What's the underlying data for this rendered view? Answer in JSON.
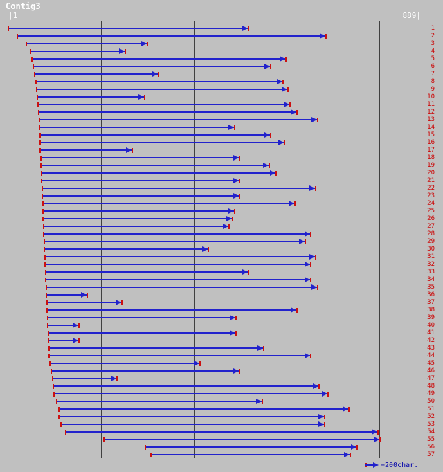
{
  "title": "Contig3",
  "ruler": {
    "left_label": "|1",
    "right_label": "889|"
  },
  "legend": {
    "label": "=200char."
  },
  "colors": {
    "background": "#c0c0c0",
    "read_blue": "#2222cc",
    "tick_red": "#cc1111",
    "label_red": "#cc0000",
    "grid_line": "#404040",
    "title_text": "#ffffff",
    "legend_text": "#0000aa"
  },
  "chart_data": {
    "type": "alignment",
    "title": "Contig3",
    "x_unit": "char",
    "x_range": [
      1,
      889
    ],
    "gridline_positions": [
      200,
      400,
      600,
      800
    ],
    "legend_label": "=200char.",
    "reads": [
      {
        "id": 1,
        "start": 1,
        "end": 517,
        "direction": "forward"
      },
      {
        "id": 2,
        "start": 20,
        "end": 683,
        "direction": "forward"
      },
      {
        "id": 3,
        "start": 40,
        "end": 299,
        "direction": "forward"
      },
      {
        "id": 4,
        "start": 49,
        "end": 251,
        "direction": "forward"
      },
      {
        "id": 5,
        "start": 52,
        "end": 597,
        "direction": "forward"
      },
      {
        "id": 6,
        "start": 55,
        "end": 564,
        "direction": "forward"
      },
      {
        "id": 7,
        "start": 58,
        "end": 323,
        "direction": "forward"
      },
      {
        "id": 8,
        "start": 61,
        "end": 591,
        "direction": "forward"
      },
      {
        "id": 9,
        "start": 62,
        "end": 601,
        "direction": "forward"
      },
      {
        "id": 10,
        "start": 64,
        "end": 293,
        "direction": "forward"
      },
      {
        "id": 11,
        "start": 65,
        "end": 606,
        "direction": "forward"
      },
      {
        "id": 12,
        "start": 67,
        "end": 621,
        "direction": "forward"
      },
      {
        "id": 13,
        "start": 68,
        "end": 665,
        "direction": "forward"
      },
      {
        "id": 14,
        "start": 68,
        "end": 487,
        "direction": "forward"
      },
      {
        "id": 15,
        "start": 70,
        "end": 564,
        "direction": "forward"
      },
      {
        "id": 16,
        "start": 70,
        "end": 594,
        "direction": "forward"
      },
      {
        "id": 17,
        "start": 70,
        "end": 266,
        "direction": "forward"
      },
      {
        "id": 18,
        "start": 71,
        "end": 497,
        "direction": "forward"
      },
      {
        "id": 19,
        "start": 71,
        "end": 561,
        "direction": "forward"
      },
      {
        "id": 20,
        "start": 72,
        "end": 576,
        "direction": "forward"
      },
      {
        "id": 21,
        "start": 72,
        "end": 497,
        "direction": "forward"
      },
      {
        "id": 22,
        "start": 74,
        "end": 661,
        "direction": "forward"
      },
      {
        "id": 23,
        "start": 74,
        "end": 497,
        "direction": "forward"
      },
      {
        "id": 24,
        "start": 75,
        "end": 616,
        "direction": "forward"
      },
      {
        "id": 25,
        "start": 75,
        "end": 487,
        "direction": "forward"
      },
      {
        "id": 26,
        "start": 75,
        "end": 482,
        "direction": "forward"
      },
      {
        "id": 27,
        "start": 77,
        "end": 475,
        "direction": "forward"
      },
      {
        "id": 28,
        "start": 77,
        "end": 651,
        "direction": "forward"
      },
      {
        "id": 29,
        "start": 78,
        "end": 639,
        "direction": "forward"
      },
      {
        "id": 30,
        "start": 78,
        "end": 430,
        "direction": "forward"
      },
      {
        "id": 31,
        "start": 80,
        "end": 661,
        "direction": "forward"
      },
      {
        "id": 32,
        "start": 80,
        "end": 651,
        "direction": "forward"
      },
      {
        "id": 33,
        "start": 81,
        "end": 517,
        "direction": "forward"
      },
      {
        "id": 34,
        "start": 81,
        "end": 651,
        "direction": "forward"
      },
      {
        "id": 35,
        "start": 83,
        "end": 665,
        "direction": "forward"
      },
      {
        "id": 36,
        "start": 83,
        "end": 169,
        "direction": "forward"
      },
      {
        "id": 37,
        "start": 84,
        "end": 244,
        "direction": "forward"
      },
      {
        "id": 38,
        "start": 84,
        "end": 621,
        "direction": "forward"
      },
      {
        "id": 39,
        "start": 86,
        "end": 490,
        "direction": "forward"
      },
      {
        "id": 40,
        "start": 86,
        "end": 151,
        "direction": "forward"
      },
      {
        "id": 41,
        "start": 87,
        "end": 490,
        "direction": "forward"
      },
      {
        "id": 42,
        "start": 87,
        "end": 151,
        "direction": "forward"
      },
      {
        "id": 43,
        "start": 89,
        "end": 549,
        "direction": "forward"
      },
      {
        "id": 44,
        "start": 89,
        "end": 651,
        "direction": "forward"
      },
      {
        "id": 45,
        "start": 90,
        "end": 412,
        "direction": "forward"
      },
      {
        "id": 46,
        "start": 93,
        "end": 497,
        "direction": "forward"
      },
      {
        "id": 47,
        "start": 96,
        "end": 234,
        "direction": "forward"
      },
      {
        "id": 48,
        "start": 98,
        "end": 668,
        "direction": "forward"
      },
      {
        "id": 49,
        "start": 99,
        "end": 688,
        "direction": "forward"
      },
      {
        "id": 50,
        "start": 105,
        "end": 546,
        "direction": "forward"
      },
      {
        "id": 51,
        "start": 110,
        "end": 733,
        "direction": "forward"
      },
      {
        "id": 52,
        "start": 110,
        "end": 680,
        "direction": "forward"
      },
      {
        "id": 53,
        "start": 114,
        "end": 680,
        "direction": "forward"
      },
      {
        "id": 54,
        "start": 125,
        "end": 795,
        "direction": "forward"
      },
      {
        "id": 55,
        "start": 207,
        "end": 800,
        "direction": "forward"
      },
      {
        "id": 56,
        "start": 296,
        "end": 750,
        "direction": "forward"
      },
      {
        "id": 57,
        "start": 308,
        "end": 736,
        "direction": "forward"
      }
    ]
  }
}
